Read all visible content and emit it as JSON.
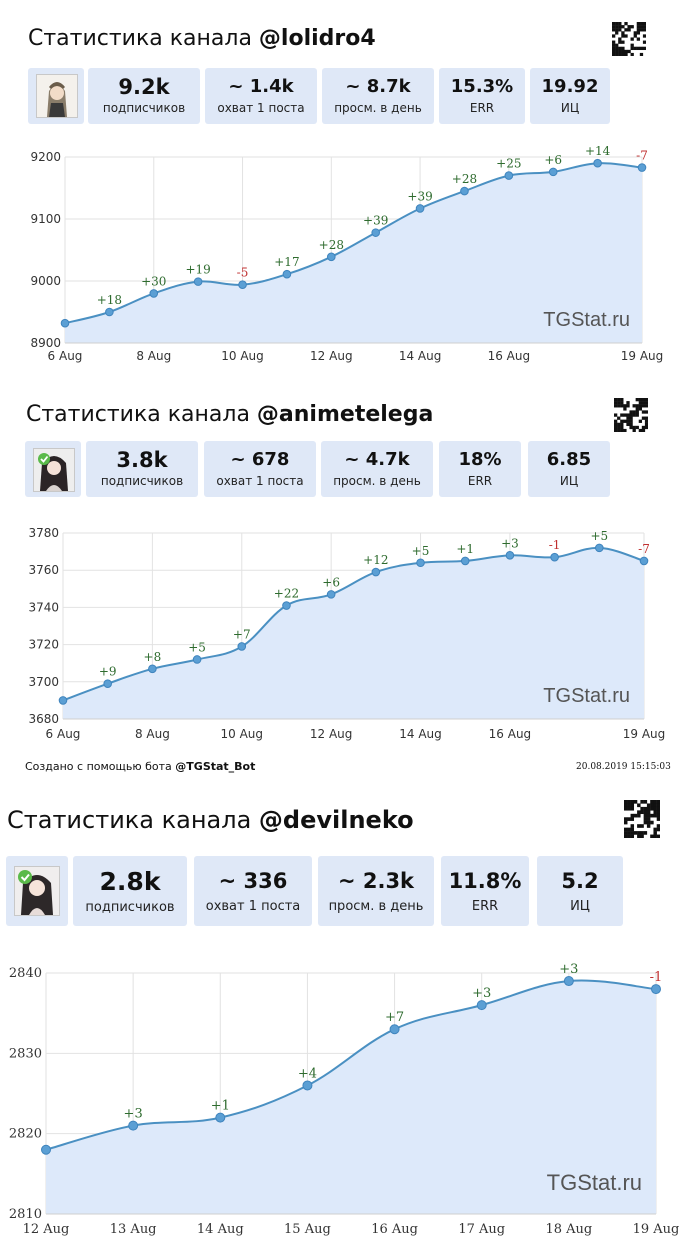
{
  "panels": [
    {
      "title_prefix": "Статистика канала ",
      "handle": "@lolidro4",
      "stats": [
        {
          "value": "9.2k",
          "label": "подписчиков"
        },
        {
          "value": "~ 1.4k",
          "label": "охват 1 поста"
        },
        {
          "value": "~ 8.7k",
          "label": "просм. в день"
        },
        {
          "value": "15.3%",
          "label": "ERR"
        },
        {
          "value": "19.92",
          "label": "ИЦ"
        }
      ],
      "watermark": "TGStat.ru",
      "footer": null,
      "chart_data": {
        "type": "area",
        "x": [
          "6 Aug",
          "7 Aug",
          "8 Aug",
          "9 Aug",
          "10 Aug",
          "11 Aug",
          "12 Aug",
          "13 Aug",
          "14 Aug",
          "15 Aug",
          "16 Aug",
          "17 Aug",
          "18 Aug",
          "19 Aug"
        ],
        "values": [
          8932,
          8950,
          8980,
          8999,
          8994,
          9011,
          9039,
          9078,
          9117,
          9145,
          9170,
          9176,
          9190,
          9183
        ],
        "deltas": [
          "",
          "+18",
          "+30",
          "+19",
          "-5",
          "+17",
          "+28",
          "+39",
          "+39",
          "+28",
          "+25",
          "+6",
          "+14",
          "-7"
        ],
        "xticks": [
          "6 Aug",
          "8 Aug",
          "10 Aug",
          "12 Aug",
          "14 Aug",
          "16 Aug",
          "19 Aug"
        ],
        "ylim": [
          8900,
          9200
        ],
        "yticks": [
          8900,
          9000,
          9100,
          9200
        ],
        "grid": true,
        "colors": {
          "line": "#4a90c2",
          "fill": "#dde9fa",
          "pos": "#2e6b2e",
          "neg": "#c03030"
        }
      }
    },
    {
      "title_prefix": "Статистика канала ",
      "handle": "@animetelega",
      "stats": [
        {
          "value": "3.8k",
          "label": "подписчиков"
        },
        {
          "value": "~ 678",
          "label": "охват 1 поста"
        },
        {
          "value": "~ 4.7k",
          "label": "просм. в день"
        },
        {
          "value": "18%",
          "label": "ERR"
        },
        {
          "value": "6.85",
          "label": "ИЦ"
        }
      ],
      "watermark": "TGStat.ru",
      "footer": {
        "left_prefix": "Создано с помощью бота ",
        "left_bot": "@TGStat_Bot",
        "right": "20.08.2019 15:15:03"
      },
      "chart_data": {
        "type": "area",
        "x": [
          "6 Aug",
          "7 Aug",
          "8 Aug",
          "9 Aug",
          "10 Aug",
          "11 Aug",
          "12 Aug",
          "13 Aug",
          "14 Aug",
          "15 Aug",
          "16 Aug",
          "17 Aug",
          "18 Aug",
          "19 Aug"
        ],
        "values": [
          3690,
          3699,
          3707,
          3712,
          3719,
          3741,
          3747,
          3759,
          3764,
          3765,
          3768,
          3767,
          3772,
          3765
        ],
        "deltas": [
          "",
          "+9",
          "+8",
          "+5",
          "+7",
          "+22",
          "+6",
          "+12",
          "+5",
          "+1",
          "+3",
          "-1",
          "+5",
          "-7"
        ],
        "xticks": [
          "6 Aug",
          "8 Aug",
          "10 Aug",
          "12 Aug",
          "14 Aug",
          "16 Aug",
          "19 Aug"
        ],
        "ylim": [
          3680,
          3780
        ],
        "yticks": [
          3680,
          3700,
          3720,
          3740,
          3760,
          3780
        ],
        "grid": true,
        "colors": {
          "line": "#4a90c2",
          "fill": "#dde9fa",
          "pos": "#2e6b2e",
          "neg": "#c03030"
        }
      }
    },
    {
      "title_prefix": "Статистика канала ",
      "handle": "@devilneko",
      "stats": [
        {
          "value": "2.8k",
          "label": "подписчиков"
        },
        {
          "value": "~ 336",
          "label": "охват 1 поста"
        },
        {
          "value": "~ 2.3k",
          "label": "просм. в день"
        },
        {
          "value": "11.8%",
          "label": "ERR"
        },
        {
          "value": "5.2",
          "label": "ИЦ"
        }
      ],
      "watermark": "TGStat.ru",
      "footer": null,
      "chart_data": {
        "type": "area",
        "x": [
          "12 Aug",
          "13 Aug",
          "14 Aug",
          "15 Aug",
          "16 Aug",
          "17 Aug",
          "18 Aug",
          "19 Aug"
        ],
        "values": [
          2818,
          2821,
          2822,
          2826,
          2833,
          2836,
          2839,
          2838
        ],
        "deltas": [
          "",
          "+3",
          "+1",
          "+4",
          "+7",
          "+3",
          "+3",
          "-1"
        ],
        "xticks": [
          "12 Aug",
          "13 Aug",
          "14 Aug",
          "15 Aug",
          "16 Aug",
          "17 Aug",
          "18 Aug",
          "19 Aug"
        ],
        "ylim": [
          2810,
          2840
        ],
        "yticks": [
          2810,
          2820,
          2830,
          2840
        ],
        "grid": true,
        "colors": {
          "line": "#4a90c2",
          "fill": "#dde9fa",
          "pos": "#2e6b2e",
          "neg": "#c03030"
        }
      }
    }
  ]
}
